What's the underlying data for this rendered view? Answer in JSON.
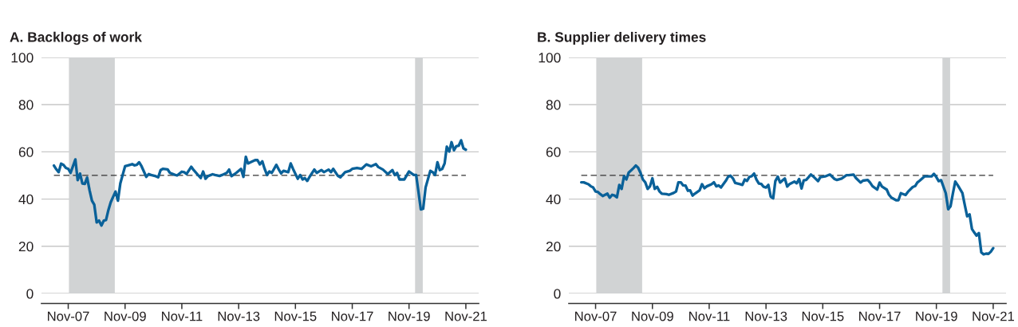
{
  "chart_data": [
    {
      "type": "line",
      "title": "A. Backlogs of work",
      "grid": "y",
      "x": [
        "2007-05",
        "2007-06",
        "2007-07",
        "2007-08",
        "2007-09",
        "2007-10",
        "2007-11",
        "2007-12",
        "2008-02",
        "2008-03",
        "2008-04",
        "2008-05",
        "2008-06",
        "2008-07",
        "2008-08",
        "2008-09",
        "2008-10",
        "2008-11",
        "2008-12",
        "2009-01",
        "2009-02",
        "2009-03",
        "2009-04",
        "2009-05",
        "2009-07",
        "2009-08",
        "2009-09",
        "2009-10",
        "2009-11",
        "2009-12",
        "2010-02",
        "2010-03",
        "2010-04",
        "2010-05",
        "2010-06",
        "2010-08",
        "2010-09",
        "2010-10",
        "2010-12",
        "2011-01",
        "2011-02",
        "2011-03",
        "2011-05",
        "2011-06",
        "2011-08",
        "2011-09",
        "2011-11",
        "2011-12",
        "2012-01",
        "2012-03",
        "2012-04",
        "2012-06",
        "2012-07",
        "2012-08",
        "2012-09",
        "2012-10",
        "2012-12",
        "2013-01",
        "2013-03",
        "2013-04",
        "2013-06",
        "2013-07",
        "2013-08",
        "2013-10",
        "2013-12",
        "2014-01",
        "2014-02",
        "2014-03",
        "2014-04",
        "2014-06",
        "2014-07",
        "2014-08",
        "2014-09",
        "2014-10",
        "2014-11",
        "2014-12",
        "2015-01",
        "2015-03",
        "2015-04",
        "2015-05",
        "2015-06",
        "2015-08",
        "2015-09",
        "2015-10",
        "2015-12",
        "2016-01",
        "2016-02",
        "2016-03",
        "2016-04",
        "2016-05",
        "2016-07",
        "2016-08",
        "2016-10",
        "2016-11",
        "2017-01",
        "2017-02",
        "2017-03",
        "2017-05",
        "2017-06",
        "2017-08",
        "2017-10",
        "2017-11",
        "2018-01",
        "2018-03",
        "2018-05",
        "2018-07",
        "2018-09",
        "2018-10",
        "2018-12",
        "2019-02",
        "2019-04",
        "2019-05",
        "2019-06",
        "2019-07",
        "2019-09",
        "2019-11",
        "2020-01",
        "2020-02",
        "2020-03",
        "2020-04",
        "2020-05",
        "2020-06",
        "2020-08",
        "2020-09",
        "2020-10",
        "2020-11",
        "2020-12",
        "2021-01",
        "2021-02",
        "2021-03",
        "2021-04",
        "2021-05",
        "2021-06",
        "2021-07",
        "2021-08",
        "2021-09",
        "2021-10",
        "2021-11"
      ],
      "series": [
        {
          "color": "#0a6199",
          "values": [
            54.2,
            52.6,
            51.4,
            55,
            54.5,
            53.2,
            52.8,
            51.1,
            56.8,
            48,
            50.8,
            46.6,
            46.4,
            49.1,
            43.8,
            39.3,
            37.6,
            30.1,
            30.9,
            28.8,
            30.9,
            31.1,
            35.4,
            38.7,
            43.2,
            39.3,
            46.6,
            50.2,
            53.9,
            54.2,
            54.8,
            54.3,
            54.5,
            55.6,
            53.9,
            49.4,
            50.6,
            50.2,
            49.7,
            49.2,
            52.3,
            52.8,
            52.6,
            51.1,
            50.3,
            50,
            51.6,
            51.4,
            50.6,
            53.7,
            52.3,
            50,
            48.9,
            51.7,
            48.6,
            49.7,
            50.5,
            50.2,
            49.8,
            50.2,
            51.1,
            52.5,
            49.7,
            51.1,
            52.8,
            49.4,
            57.9,
            55.1,
            55.6,
            56.5,
            56.5,
            54.7,
            56,
            52.8,
            50.2,
            51.7,
            51.1,
            54.5,
            52.5,
            50.9,
            52,
            51.4,
            55.1,
            52.8,
            48.6,
            50.2,
            48.3,
            48.9,
            47.7,
            49.4,
            52.5,
            51.1,
            52.3,
            51.4,
            52.5,
            51.4,
            52.8,
            49.8,
            49.2,
            51.4,
            52,
            52.8,
            53.2,
            52.8,
            54.7,
            53.9,
            54.8,
            53.6,
            52.5,
            50.6,
            52.3,
            50.2,
            51.1,
            48.3,
            48.3,
            51.7,
            50.2,
            50.2,
            43.2,
            35.6,
            35.9,
            44.9,
            52,
            51.4,
            50.2,
            55.6,
            52.3,
            52.8,
            55.1,
            62.2,
            60.1,
            64.1,
            60.7,
            62.4,
            62.6,
            64.9,
            61.5,
            60.9
          ]
        }
      ],
      "xlim": [
        "2006-11-22",
        "2022-04-15"
      ],
      "xticks": [
        {
          "value": "2007-11",
          "label": "Nov-07"
        },
        {
          "value": "2009-11",
          "label": "Nov-09"
        },
        {
          "value": "2011-11",
          "label": "Nov-11"
        },
        {
          "value": "2013-11",
          "label": "Nov-13"
        },
        {
          "value": "2015-11",
          "label": "Nov-15"
        },
        {
          "value": "2017-11",
          "label": "Nov-17"
        },
        {
          "value": "2019-11",
          "label": "Nov-19"
        },
        {
          "value": "2021-11",
          "label": "Nov-21"
        }
      ],
      "ylim": [
        0,
        100
      ],
      "yticks": [
        0,
        20,
        40,
        60,
        80,
        100
      ],
      "ref_lines": [
        {
          "axis": "y",
          "value": 50,
          "color": "#333333",
          "line_style": "dashed"
        }
      ],
      "bands": [
        {
          "axis": "x",
          "from": "2007-11-10",
          "to": "2009-06-22",
          "color": "#d1d3d4"
        },
        {
          "axis": "x",
          "from": "2020-01-18",
          "to": "2020-04-26",
          "color": "#d1d3d4"
        }
      ]
    },
    {
      "type": "line",
      "title": "B. Supplier delivery times",
      "grid": "y",
      "x": [
        "2007-05",
        "2007-06",
        "2007-08",
        "2007-09",
        "2007-10",
        "2007-11",
        "2007-12",
        "2008-01",
        "2008-02",
        "2008-04",
        "2008-05",
        "2008-06",
        "2008-07",
        "2008-08",
        "2008-09",
        "2008-10",
        "2008-11",
        "2008-12",
        "2009-01",
        "2009-02",
        "2009-03",
        "2009-04",
        "2009-05",
        "2009-06",
        "2009-07",
        "2009-08",
        "2009-09",
        "2009-10",
        "2009-11",
        "2009-12",
        "2010-01",
        "2010-02",
        "2010-03",
        "2010-05",
        "2010-06",
        "2010-08",
        "2010-09",
        "2010-10",
        "2010-11",
        "2010-12",
        "2011-01",
        "2011-02",
        "2011-03",
        "2011-04",
        "2011-05",
        "2011-07",
        "2011-08",
        "2011-09",
        "2011-10",
        "2011-12",
        "2012-01",
        "2012-02",
        "2012-03",
        "2012-04",
        "2012-06",
        "2012-07",
        "2012-08",
        "2012-09",
        "2012-10",
        "2012-12",
        "2013-01",
        "2013-02",
        "2013-03",
        "2013-04",
        "2013-05",
        "2013-06",
        "2013-07",
        "2013-08",
        "2013-09",
        "2013-10",
        "2013-11",
        "2013-12",
        "2014-01",
        "2014-02",
        "2014-03",
        "2014-04",
        "2014-05",
        "2014-07",
        "2014-08",
        "2014-09",
        "2014-11",
        "2014-12",
        "2015-01",
        "2015-02",
        "2015-03",
        "2015-04",
        "2015-06",
        "2015-07",
        "2015-09",
        "2015-10",
        "2015-12",
        "2016-02",
        "2016-04",
        "2016-05",
        "2016-07",
        "2016-09",
        "2016-10",
        "2016-12",
        "2017-01",
        "2017-03",
        "2017-04",
        "2017-06",
        "2017-07",
        "2017-08",
        "2017-10",
        "2017-11",
        "2017-12",
        "2018-02",
        "2018-03",
        "2018-04",
        "2018-06",
        "2018-07",
        "2018-08",
        "2018-10",
        "2018-11",
        "2019-01",
        "2019-02",
        "2019-03",
        "2019-04",
        "2019-06",
        "2019-08",
        "2019-09",
        "2019-10",
        "2019-11",
        "2019-12",
        "2020-01",
        "2020-03",
        "2020-04",
        "2020-05",
        "2020-06",
        "2020-07",
        "2020-08",
        "2020-09",
        "2020-10",
        "2020-11",
        "2020-12",
        "2021-01",
        "2021-02",
        "2021-03",
        "2021-04",
        "2021-05",
        "2021-06",
        "2021-07",
        "2021-08",
        "2021-09",
        "2021-10",
        "2021-11"
      ],
      "series": [
        {
          "color": "#0a6199",
          "values": [
            47.1,
            47.1,
            46.3,
            45.4,
            44.9,
            43.2,
            43,
            42.1,
            41.3,
            42.3,
            40.6,
            41.8,
            41.5,
            40.7,
            46,
            44.3,
            49.7,
            48.3,
            51.3,
            52.2,
            53.1,
            54.2,
            53.3,
            51.1,
            48.3,
            47.1,
            44.3,
            45.4,
            48.8,
            44.3,
            45.2,
            43.2,
            42.3,
            42.1,
            41.8,
            42.6,
            43.2,
            47.1,
            47.1,
            45.8,
            45.7,
            43.5,
            43.7,
            41.5,
            42.3,
            43.7,
            46.3,
            44.6,
            45.4,
            46.3,
            47.1,
            45.4,
            45.8,
            44.9,
            47.7,
            49.4,
            49.9,
            48.8,
            46.8,
            46.3,
            46,
            48.3,
            47.7,
            49.4,
            49.7,
            50.8,
            48.3,
            46.6,
            46.4,
            45.2,
            44.9,
            46,
            41,
            40.3,
            47.6,
            49.5,
            47,
            48.7,
            45.3,
            46.4,
            47.4,
            46.7,
            48.5,
            44.5,
            47.9,
            48.1,
            50.4,
            49.6,
            47.6,
            49.3,
            49.6,
            50.4,
            48.5,
            48.1,
            48.7,
            50.1,
            50.1,
            50.4,
            48.9,
            47,
            47.8,
            48.1,
            47,
            45.5,
            44,
            47,
            45.3,
            44,
            41.9,
            40.6,
            39.5,
            39.5,
            42.5,
            41.7,
            43.1,
            45.1,
            45.5,
            47,
            47.8,
            49.6,
            49.6,
            49.6,
            50.7,
            49.3,
            47.6,
            48,
            42.5,
            35.7,
            36.9,
            42.5,
            47.4,
            45.9,
            44.2,
            42.5,
            37.4,
            32.7,
            33.5,
            27.3,
            25.9,
            24.5,
            25.6,
            17.4,
            16.6,
            16.9,
            16.8,
            17.7,
            19.2
          ]
        }
      ],
      "xlim": [
        "2006-11-22",
        "2022-04-15"
      ],
      "xticks": [
        {
          "value": "2007-11",
          "label": "Nov-07"
        },
        {
          "value": "2009-11",
          "label": "Nov-09"
        },
        {
          "value": "2011-11",
          "label": "Nov-11"
        },
        {
          "value": "2013-11",
          "label": "Nov-13"
        },
        {
          "value": "2015-11",
          "label": "Nov-15"
        },
        {
          "value": "2017-11",
          "label": "Nov-17"
        },
        {
          "value": "2019-11",
          "label": "Nov-19"
        },
        {
          "value": "2021-11",
          "label": "Nov-21"
        }
      ],
      "ylim": [
        0,
        100
      ],
      "yticks": [
        0,
        20,
        40,
        60,
        80,
        100
      ],
      "ref_lines": [
        {
          "axis": "y",
          "value": 50,
          "color": "#333333",
          "line_style": "dashed"
        }
      ],
      "bands": [
        {
          "axis": "x",
          "from": "2007-11-10",
          "to": "2009-06-22",
          "color": "#d1d3d4"
        },
        {
          "axis": "x",
          "from": "2020-01-18",
          "to": "2020-04-26",
          "color": "#d1d3d4"
        }
      ]
    }
  ]
}
